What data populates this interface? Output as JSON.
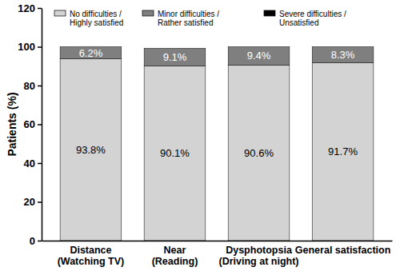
{
  "chart_data": {
    "type": "bar",
    "stacked": true,
    "data_labels": true,
    "y_label": "Patients (%)",
    "categories": [
      "Distance (Watching TV)",
      "Near (Reading)",
      "Dysphotopsia (Driving at night)",
      "General satisfaction"
    ],
    "series": [
      {
        "name": "No difficulties / Highly satisfied",
        "color": "#d3d3d3",
        "values": [
          93.8,
          90.1,
          90.6,
          91.7
        ],
        "value_labels": [
          "93.8%",
          "90.1%",
          "90.6%",
          "91.7%"
        ]
      },
      {
        "name": "Minor difficulties / Rather satisfied",
        "color": "#7f7f7f",
        "values": [
          6.2,
          9.1,
          9.4,
          8.3
        ],
        "value_labels": [
          "6.2%",
          "9.1%",
          "9.4%",
          "8.3%"
        ]
      },
      {
        "name": "Severe difficulties / Unsatisfied",
        "color": "#000000",
        "values": [
          0,
          0,
          0,
          0
        ]
      }
    ],
    "ylim": [
      0,
      120
    ],
    "yticks": [
      0,
      20,
      40,
      60,
      80,
      100,
      120
    ],
    "grid": false,
    "legend": "top"
  }
}
